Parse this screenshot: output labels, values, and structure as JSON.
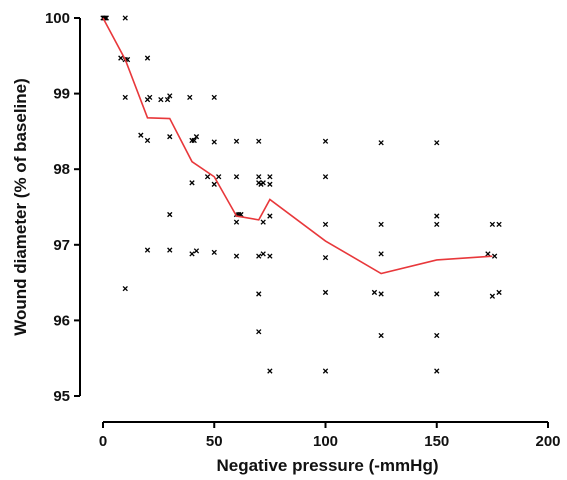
{
  "chart_data": {
    "type": "scatter",
    "title": "",
    "xlabel": "Negative pressure (-mmHg)",
    "ylabel": "Wound diameter (% of baseline)",
    "xlim": [
      0,
      200
    ],
    "ylim": [
      95,
      100
    ],
    "x_ticks": [
      "0",
      "50",
      "100",
      "150",
      "200"
    ],
    "y_ticks": [
      "95",
      "96",
      "97",
      "98",
      "99",
      "100"
    ],
    "grid": false,
    "legend": "none",
    "marker": "x",
    "colors": {
      "points": "#000000",
      "trend_line": "#e8383b"
    },
    "series": [
      {
        "kind": "points",
        "points": [
          [
            0,
            100
          ],
          [
            0.5,
            100
          ],
          [
            1,
            100
          ],
          [
            1.5,
            100
          ],
          [
            10,
            100
          ],
          [
            8,
            99.47
          ],
          [
            10,
            99.45
          ],
          [
            11,
            99.45
          ],
          [
            10,
            98.95
          ],
          [
            20,
            99.47
          ],
          [
            20,
            98.92
          ],
          [
            20,
            98.38
          ],
          [
            20,
            96.93
          ],
          [
            21,
            98.95
          ],
          [
            10,
            96.42
          ],
          [
            17,
            98.45
          ],
          [
            26,
            98.92
          ],
          [
            29,
            98.92
          ],
          [
            30,
            98.97
          ],
          [
            30,
            98.43
          ],
          [
            30,
            97.4
          ],
          [
            30,
            96.93
          ],
          [
            39,
            98.95
          ],
          [
            40,
            98.38
          ],
          [
            40,
            97.82
          ],
          [
            40,
            96.88
          ],
          [
            41,
            98.38
          ],
          [
            42,
            98.43
          ],
          [
            42,
            96.92
          ],
          [
            47,
            97.9
          ],
          [
            50,
            98.95
          ],
          [
            50,
            98.36
          ],
          [
            50,
            97.8
          ],
          [
            50,
            96.9
          ],
          [
            52,
            97.9
          ],
          [
            60,
            98.37
          ],
          [
            60,
            97.9
          ],
          [
            60,
            97.4
          ],
          [
            60,
            97.3
          ],
          [
            60,
            96.85
          ],
          [
            61,
            97.4
          ],
          [
            62,
            97.4
          ],
          [
            70,
            98.37
          ],
          [
            70,
            97.9
          ],
          [
            70,
            97.82
          ],
          [
            70,
            96.85
          ],
          [
            70,
            96.35
          ],
          [
            70,
            95.85
          ],
          [
            71,
            97.8
          ],
          [
            72,
            97.82
          ],
          [
            72,
            97.3
          ],
          [
            72,
            96.88
          ],
          [
            75,
            97.9
          ],
          [
            75,
            97.8
          ],
          [
            75,
            97.38
          ],
          [
            75,
            96.85
          ],
          [
            75,
            95.33
          ],
          [
            100,
            98.37
          ],
          [
            100,
            97.9
          ],
          [
            100,
            97.27
          ],
          [
            100,
            96.83
          ],
          [
            100,
            96.37
          ],
          [
            100,
            95.33
          ],
          [
            122,
            96.37
          ],
          [
            125,
            98.35
          ],
          [
            125,
            97.27
          ],
          [
            125,
            96.88
          ],
          [
            125,
            96.35
          ],
          [
            125,
            95.8
          ],
          [
            150,
            98.35
          ],
          [
            150,
            97.38
          ],
          [
            150,
            97.27
          ],
          [
            150,
            96.35
          ],
          [
            150,
            95.8
          ],
          [
            150,
            95.33
          ],
          [
            173,
            96.88
          ],
          [
            175,
            97.27
          ],
          [
            175,
            96.32
          ],
          [
            176,
            96.85
          ],
          [
            178,
            97.27
          ],
          [
            178,
            96.37
          ]
        ]
      },
      {
        "kind": "line",
        "points": [
          [
            0,
            100
          ],
          [
            10,
            99.45
          ],
          [
            20,
            98.68
          ],
          [
            30,
            98.67
          ],
          [
            40,
            98.1
          ],
          [
            50,
            97.9
          ],
          [
            60,
            97.38
          ],
          [
            70,
            97.33
          ],
          [
            75,
            97.6
          ],
          [
            100,
            97.05
          ],
          [
            125,
            96.62
          ],
          [
            150,
            96.8
          ],
          [
            175,
            96.85
          ]
        ]
      }
    ]
  }
}
